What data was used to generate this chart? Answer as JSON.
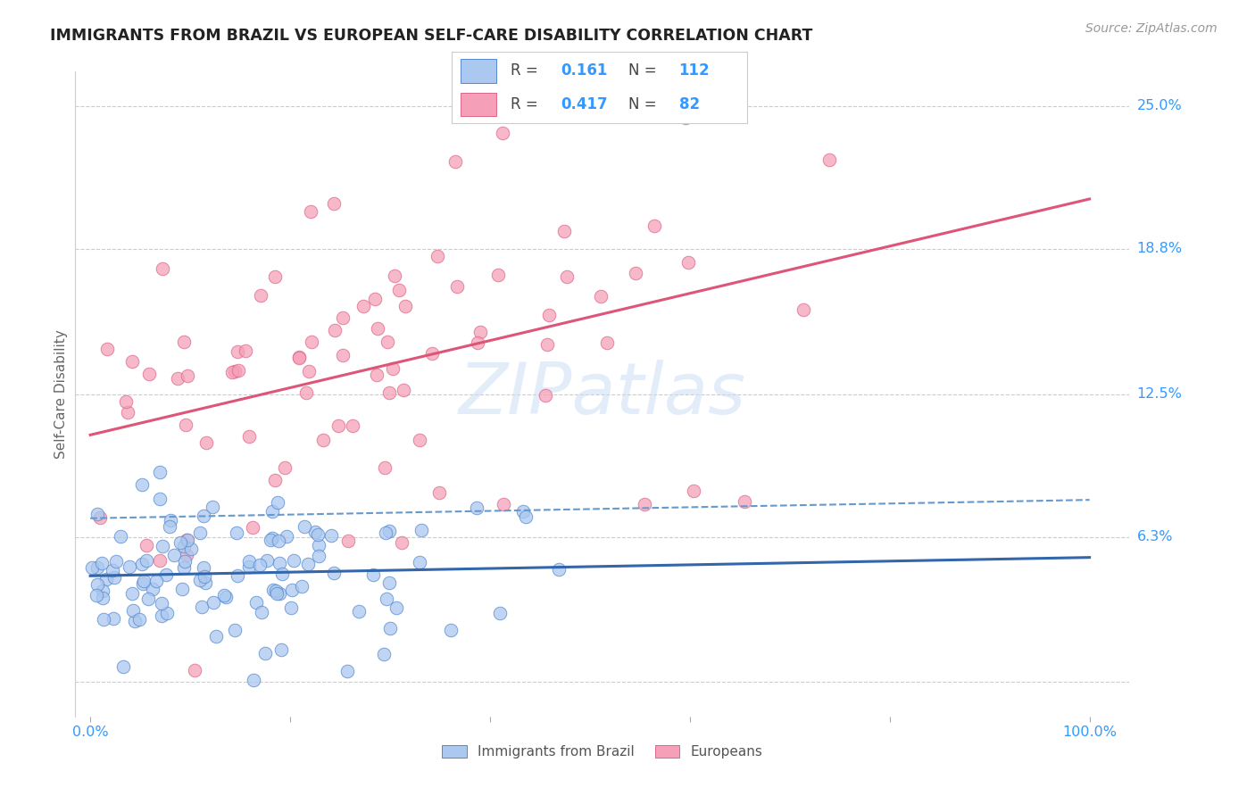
{
  "title": "IMMIGRANTS FROM BRAZIL VS EUROPEAN SELF-CARE DISABILITY CORRELATION CHART",
  "source": "Source: ZipAtlas.com",
  "ylabel": "Self-Care Disability",
  "brazil_R": 0.161,
  "brazil_N": 112,
  "european_R": 0.417,
  "european_N": 82,
  "ylim": [
    -0.015,
    0.265
  ],
  "ytick_vals": [
    0.0,
    0.063,
    0.125,
    0.188,
    0.25
  ],
  "ytick_labels": [
    "",
    "6.3%",
    "12.5%",
    "18.8%",
    "25.0%"
  ],
  "xtick_positions": [
    0.0,
    0.2,
    0.4,
    0.6,
    0.8,
    1.0
  ],
  "xtick_labels": [
    "0.0%",
    "",
    "",
    "",
    "",
    "100.0%"
  ],
  "grid_color": "#cccccc",
  "background_color": "#ffffff",
  "brazil_color": "#aac8f0",
  "brazil_edge_color": "#5588cc",
  "european_color": "#f5a0b8",
  "european_edge_color": "#dd6688",
  "brazil_solid_line_color": "#3366aa",
  "brazil_dash_line_color": "#6699cc",
  "european_line_color": "#dd5577",
  "title_color": "#222222",
  "axis_label_color": "#666666",
  "tick_color": "#3399ff",
  "right_label_color": "#3399ff",
  "legend_box_color": "#eeeeee",
  "legend_R_color": "#3399ff",
  "watermark_color": "#ccddf5"
}
